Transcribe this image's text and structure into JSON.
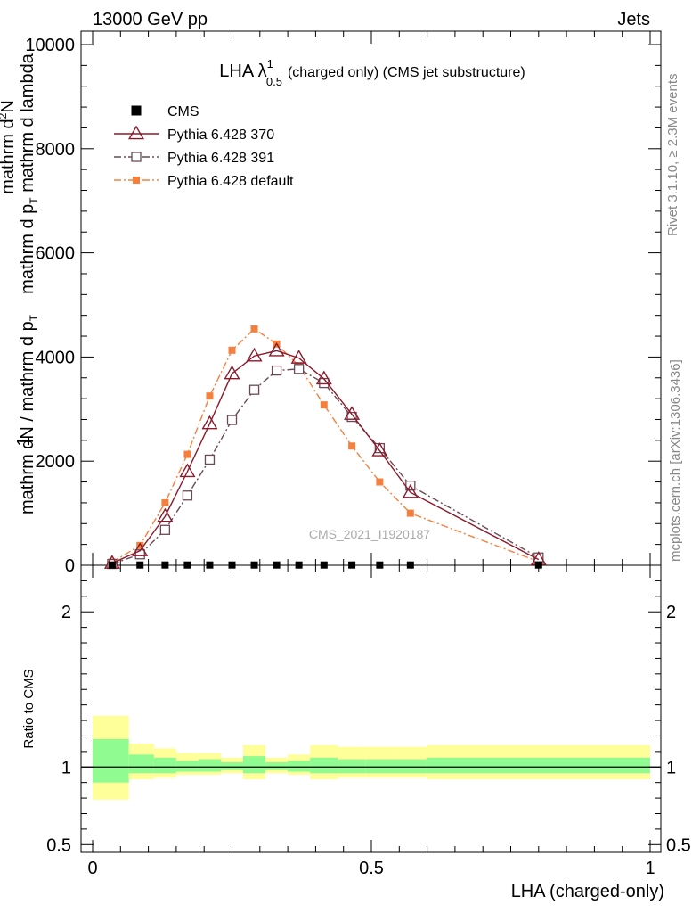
{
  "header": {
    "left": "13000 GeV pp",
    "right": "Jets"
  },
  "side_labels": {
    "rivet": "Rivet 3.1.10, ≥ 2.3M events",
    "mcplots": "mcplots.cern.ch [arXiv:1306.3436]"
  },
  "chart_data": {
    "type": "line",
    "title_main": "LHA λ",
    "title_sup": "1",
    "title_sub": "0.5",
    "title_rest": "(charged only) (CMS jet substructure)",
    "watermark": "CMS_2021_I1920187",
    "xlabel": "LHA (charged-only)",
    "ylabel_top": "1",
    "ylabel_a": "mathrm dN / mathrm d p",
    "ylabel_a_sub": "T",
    "ylabel_b": "mathrm d",
    "ylabel_b_sup": "2",
    "ylabel_b_rest": "N",
    "ylabel_c": "mathrm d p",
    "ylabel_c_sub": "T",
    "ylabel_c_rest": " mathrm d lambda",
    "ratio_ylabel": "Ratio to CMS",
    "xlim": [
      0,
      1
    ],
    "ylim": [
      0,
      10200
    ],
    "ratio_ylim": [
      0.45,
      2.3
    ],
    "x_ticks": [
      {
        "value": 0,
        "label": "0"
      },
      {
        "value": 0.5,
        "label": "0.5"
      },
      {
        "value": 1,
        "label": "1"
      }
    ],
    "y_ticks": [
      {
        "value": 0,
        "label": "0"
      },
      {
        "value": 2000,
        "label": "2000"
      },
      {
        "value": 4000,
        "label": "4000"
      },
      {
        "value": 6000,
        "label": "6000"
      },
      {
        "value": 8000,
        "label": "8000"
      },
      {
        "value": 10000,
        "label": "10000"
      }
    ],
    "ratio_y_ticks": [
      {
        "value": 0.5,
        "label": "0.5"
      },
      {
        "value": 1,
        "label": "1"
      },
      {
        "value": 2,
        "label": "2"
      }
    ],
    "series": [
      {
        "name": "CMS",
        "color": "#000000",
        "marker": "filled-square",
        "line": "none",
        "x": [
          0.035,
          0.085,
          0.13,
          0.17,
          0.21,
          0.25,
          0.29,
          0.33,
          0.37,
          0.415,
          0.465,
          0.515,
          0.57,
          0.8
        ],
        "y": [
          5,
          5,
          5,
          5,
          5,
          5,
          5,
          5,
          5,
          5,
          5,
          5,
          5,
          5
        ]
      },
      {
        "name": "Pythia 6.428 370",
        "color": "#8b1a2b",
        "marker": "open-triangle",
        "line": "solid",
        "x": [
          0.035,
          0.085,
          0.13,
          0.17,
          0.21,
          0.25,
          0.29,
          0.33,
          0.37,
          0.415,
          0.465,
          0.515,
          0.57,
          0.8
        ],
        "y": [
          40,
          280,
          940,
          1800,
          2720,
          3680,
          4020,
          4120,
          3980,
          3580,
          2900,
          2200,
          1400,
          110
        ]
      },
      {
        "name": "Pythia 6.428 391",
        "color": "#6b4a55",
        "marker": "open-square",
        "line": "dashdot",
        "x": [
          0.035,
          0.085,
          0.13,
          0.17,
          0.21,
          0.25,
          0.29,
          0.33,
          0.37,
          0.415,
          0.465,
          0.515,
          0.57,
          0.8
        ],
        "y": [
          25,
          210,
          680,
          1340,
          2030,
          2790,
          3370,
          3740,
          3770,
          3500,
          2850,
          2250,
          1530,
          150
        ]
      },
      {
        "name": "Pythia 6.428 default",
        "color": "#f5803e",
        "marker": "filled-square",
        "line": "dashdot",
        "x": [
          0.035,
          0.085,
          0.13,
          0.17,
          0.21,
          0.25,
          0.29,
          0.33,
          0.37,
          0.415,
          0.465,
          0.515,
          0.57,
          0.8
        ],
        "y": [
          60,
          380,
          1200,
          2130,
          3250,
          4130,
          4540,
          4250,
          3830,
          3080,
          2290,
          1600,
          1000,
          70
        ]
      }
    ],
    "ratio_bands": {
      "green_color": "#90fb90",
      "yellow_color": "#ffff99",
      "bins": [
        {
          "lo": 0.0,
          "hi": 0.065,
          "g": [
            0.9,
            1.18
          ],
          "y": [
            0.79,
            1.33
          ]
        },
        {
          "lo": 0.065,
          "hi": 0.11,
          "g": [
            0.96,
            1.08
          ],
          "y": [
            0.92,
            1.15
          ]
        },
        {
          "lo": 0.11,
          "hi": 0.15,
          "g": [
            0.96,
            1.06
          ],
          "y": [
            0.93,
            1.12
          ]
        },
        {
          "lo": 0.15,
          "hi": 0.19,
          "g": [
            0.97,
            1.04
          ],
          "y": [
            0.95,
            1.09
          ]
        },
        {
          "lo": 0.19,
          "hi": 0.23,
          "g": [
            0.97,
            1.05
          ],
          "y": [
            0.95,
            1.09
          ]
        },
        {
          "lo": 0.23,
          "hi": 0.27,
          "g": [
            0.98,
            1.03
          ],
          "y": [
            0.96,
            1.06
          ]
        },
        {
          "lo": 0.27,
          "hi": 0.31,
          "g": [
            0.96,
            1.07
          ],
          "y": [
            0.92,
            1.14
          ]
        },
        {
          "lo": 0.31,
          "hi": 0.35,
          "g": [
            0.98,
            1.03
          ],
          "y": [
            0.96,
            1.06
          ]
        },
        {
          "lo": 0.35,
          "hi": 0.39,
          "g": [
            0.97,
            1.04
          ],
          "y": [
            0.95,
            1.08
          ]
        },
        {
          "lo": 0.39,
          "hi": 0.44,
          "g": [
            0.96,
            1.06
          ],
          "y": [
            0.92,
            1.14
          ]
        },
        {
          "lo": 0.44,
          "hi": 0.49,
          "g": [
            0.96,
            1.05
          ],
          "y": [
            0.93,
            1.13
          ]
        },
        {
          "lo": 0.49,
          "hi": 0.54,
          "g": [
            0.96,
            1.05
          ],
          "y": [
            0.93,
            1.13
          ]
        },
        {
          "lo": 0.54,
          "hi": 0.6,
          "g": [
            0.96,
            1.05
          ],
          "y": [
            0.93,
            1.13
          ]
        },
        {
          "lo": 0.6,
          "hi": 1.0,
          "g": [
            0.96,
            1.06
          ],
          "y": [
            0.92,
            1.14
          ]
        }
      ]
    }
  }
}
